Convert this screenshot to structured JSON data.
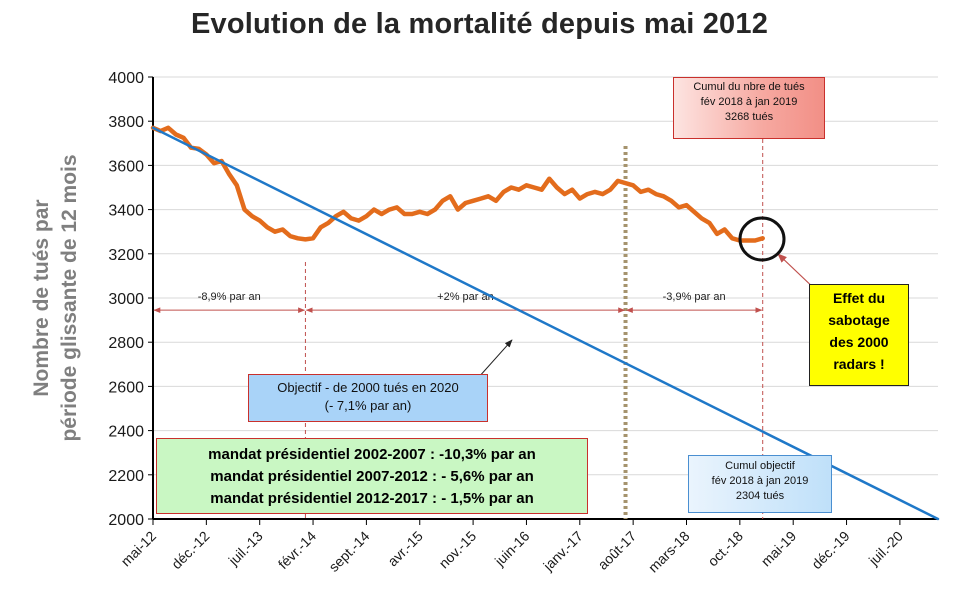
{
  "title": "Evolution de la mortalité depuis mai 2012",
  "chart_data": {
    "type": "line",
    "title": "Evolution de la mortalité depuis mai 2012",
    "ylabel": [
      "Nombre de tués par",
      "période  glissante de 12 mois"
    ],
    "xlabel": "",
    "ylim": [
      2000,
      4000
    ],
    "yticks": [
      2000,
      2200,
      2400,
      2600,
      2800,
      3000,
      3200,
      3400,
      3600,
      3800,
      4000
    ],
    "xlim": [
      "2012-05",
      "2020-12"
    ],
    "xticks": [
      "mai-12",
      "déc.-12",
      "juil.-13",
      "févr.-14",
      "sept.-14",
      "avr.-15",
      "nov.-15",
      "juin-16",
      "janv.-17",
      "août-17",
      "mars-18",
      "oct.-18",
      "mai-19",
      "déc.-19",
      "juil.-20"
    ],
    "grid": true,
    "series": [
      {
        "name": "",
        "color": "#e36c1c",
        "x": [
          "2012-05",
          "2012-06",
          "2012-07",
          "2012-08",
          "2012-09",
          "2012-10",
          "2012-11",
          "2012-12",
          "2013-01",
          "2013-02",
          "2013-03",
          "2013-04",
          "2013-05",
          "2013-06",
          "2013-07",
          "2013-08",
          "2013-09",
          "2013-10",
          "2013-11",
          "2013-12",
          "2014-01",
          "2014-02",
          "2014-03",
          "2014-04",
          "2014-05",
          "2014-06",
          "2014-07",
          "2014-08",
          "2014-09",
          "2014-10",
          "2014-11",
          "2014-12",
          "2015-01",
          "2015-02",
          "2015-03",
          "2015-04",
          "2015-05",
          "2015-06",
          "2015-07",
          "2015-08",
          "2015-09",
          "2015-10",
          "2015-11",
          "2015-12",
          "2016-01",
          "2016-02",
          "2016-03",
          "2016-04",
          "2016-05",
          "2016-06",
          "2016-07",
          "2016-08",
          "2016-09",
          "2016-10",
          "2016-11",
          "2016-12",
          "2017-01",
          "2017-02",
          "2017-03",
          "2017-04",
          "2017-05",
          "2017-06",
          "2017-07",
          "2017-08",
          "2017-09",
          "2017-10",
          "2017-11",
          "2017-12",
          "2018-01",
          "2018-02",
          "2018-03",
          "2018-04",
          "2018-05",
          "2018-06",
          "2018-07",
          "2018-08",
          "2018-09",
          "2018-10",
          "2018-11",
          "2018-12",
          "2019-01"
        ],
        "values": [
          3770,
          3755,
          3770,
          3740,
          3725,
          3680,
          3675,
          3650,
          3610,
          3620,
          3560,
          3510,
          3400,
          3370,
          3350,
          3320,
          3300,
          3310,
          3280,
          3270,
          3265,
          3270,
          3320,
          3340,
          3370,
          3390,
          3360,
          3350,
          3370,
          3400,
          3380,
          3400,
          3410,
          3380,
          3380,
          3390,
          3380,
          3400,
          3440,
          3460,
          3400,
          3430,
          3440,
          3450,
          3460,
          3440,
          3480,
          3500,
          3490,
          3510,
          3500,
          3490,
          3540,
          3500,
          3470,
          3490,
          3450,
          3470,
          3480,
          3470,
          3490,
          3530,
          3520,
          3510,
          3480,
          3490,
          3470,
          3460,
          3440,
          3410,
          3420,
          3390,
          3360,
          3340,
          3290,
          3310,
          3270,
          3260,
          3260,
          3260,
          3270
        ]
      },
      {
        "name": "",
        "color": "#1f78c8",
        "x": [
          "2012-05",
          "2020-12"
        ],
        "values": [
          3770,
          2000
        ]
      }
    ],
    "markers": [
      {
        "x": "2014-01",
        "style": "dashed",
        "color": "#c0504d"
      },
      {
        "x": "2017-07",
        "style": "dotted-thick",
        "color": "#a5936d"
      },
      {
        "x": "2019-01",
        "style": "dashed",
        "color": "#c0504d"
      }
    ],
    "periods": [
      {
        "from": "2012-05",
        "to": "2014-01",
        "y": 2945,
        "label": "-8,9% par an"
      },
      {
        "from": "2014-01",
        "to": "2017-07",
        "y": 2945,
        "label": "+2% par an"
      },
      {
        "from": "2017-07",
        "to": "2019-01",
        "y": 2945,
        "label": "-3,9% par an"
      }
    ],
    "annotations": {
      "cumul_tues": [
        "Cumul du nbre de tués",
        "fév 2018 à jan 2019",
        "3268 tués"
      ],
      "objectif": [
        "Objectif - de 2000 tués en 2020",
        "(- 7,1% par an)"
      ],
      "mandats": [
        "mandat présidentiel 2002-2007 : -10,3% par an",
        "mandat présidentiel 2007-2012 : - 5,6% par an",
        "mandat présidentiel 2012-2017 : - 1,5% par an"
      ],
      "cumul_objectif": [
        "Cumul objectif",
        "fév 2018 à jan 2019",
        "2304 tués"
      ],
      "sabotage": [
        "Effet du",
        "sabotage",
        "des 2000",
        "radars !"
      ]
    }
  }
}
